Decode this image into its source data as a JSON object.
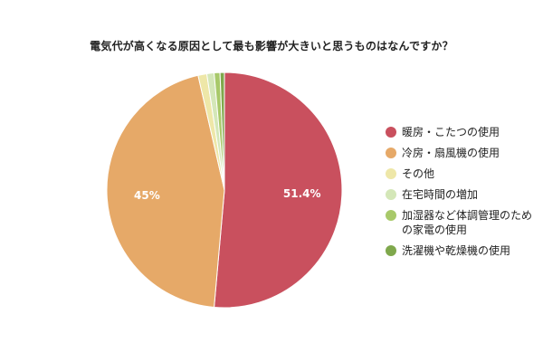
{
  "chart_data": {
    "type": "pie",
    "title": "電気代が高くなる原因として最も影響が大きいと思うものはなんですか？",
    "legend_position": "right",
    "series": [
      {
        "name": "暖房・こたつの使用",
        "value": 51.4,
        "label": "51.4%",
        "color": "#c9505e"
      },
      {
        "name": "冷房・扇風機の使用",
        "value": 45,
        "label": "45%",
        "color": "#e6a968"
      },
      {
        "name": "その他",
        "value": 1.2,
        "label": "",
        "color": "#eee7a8"
      },
      {
        "name": "在宅時間の増加",
        "value": 1.0,
        "label": "",
        "color": "#d4e7b8"
      },
      {
        "name": "加湿器など体調管理のための家電の使用",
        "legend_lines": "加湿器など体調管理のため\nの家電の使用",
        "value": 0.8,
        "label": "",
        "color": "#a8c96a"
      },
      {
        "name": "洗濯機や乾燥機の使用",
        "value": 0.6,
        "label": "",
        "color": "#7fa84c"
      }
    ]
  }
}
